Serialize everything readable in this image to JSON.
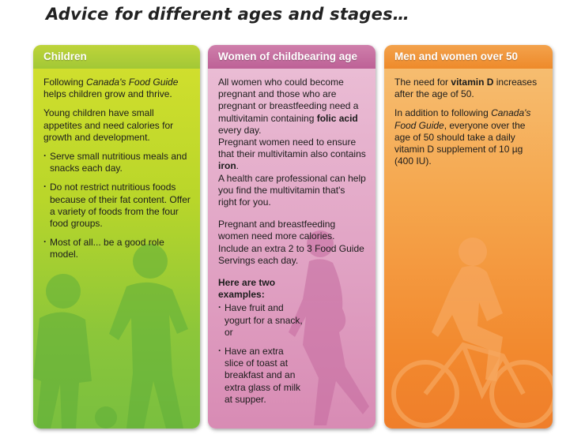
{
  "page": {
    "title": "Advice for different ages and stages…"
  },
  "colors": {
    "children": "#a8cc34",
    "women": "#d48db6",
    "men": "#f39a3f"
  },
  "children": {
    "header": "Children",
    "p1_pre": "Following ",
    "p1_em": "Canada's Food Guide",
    "p1_post": " helps children grow and thrive.",
    "p2": "Young children have small appetites and need calories for growth and development.",
    "bullets": [
      "Serve small nutritious meals and snacks each day.",
      "Do not restrict nutritious foods because of their fat content. Offer a variety of foods from the four food groups.",
      "Most of all... be a good role model."
    ]
  },
  "women": {
    "header": "Women of childbearing age",
    "p1_pre": "All women who could become pregnant and those who are pregnant or breastfeeding need a multivitamin containing ",
    "p1_b": "folic acid",
    "p1_post": " every day.",
    "p2_pre": "Pregnant women need to ensure that their multivitamin also contains ",
    "p2_b": "iron",
    "p2_post": ".",
    "p3": "A health care professional can help you find the multivitamin that's right for you.",
    "p4": "Pregnant and breastfeeding women need more calories. Include an extra 2 to 3 Food Guide Servings each day.",
    "examples_heading": "Here are two examples:",
    "examples": [
      "Have fruit and yogurt for a snack, or",
      "Have an extra slice of toast at breakfast and an extra glass of milk at supper."
    ]
  },
  "men": {
    "header": "Men and women over 50",
    "p1_pre": "The need for ",
    "p1_b": "vitamin D",
    "p1_post": " increases after the age of 50.",
    "p2_pre": "In addition to following ",
    "p2_em": "Canada's Food Guide",
    "p2_post": ", everyone over the age of 50 should take a daily vitamin D supplement of 10 µg (400 IU)."
  }
}
